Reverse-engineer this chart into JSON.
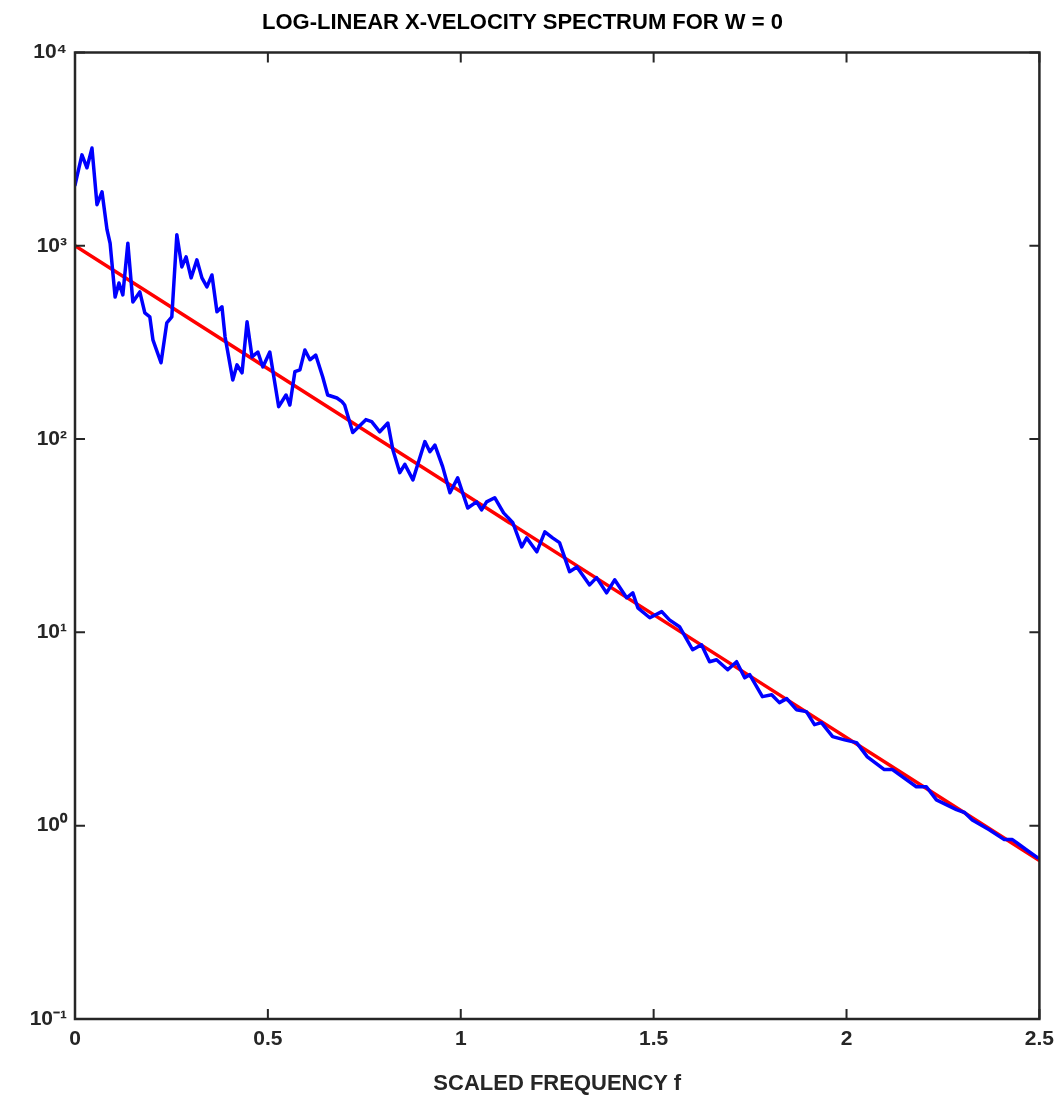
{
  "chart_data": {
    "type": "line",
    "title": "LOG-LINEAR X-VELOCITY SPECTRUM FOR W = 0",
    "xlabel": "SCALED FREQUENCY f",
    "log": "y",
    "grid": false,
    "legend": false,
    "marker": "none",
    "line_style": "solid",
    "xlim": [
      0,
      2.5
    ],
    "xticks": [
      0,
      0.5,
      1,
      1.5,
      2,
      2.5
    ],
    "ylim": [
      0.1,
      10000
    ],
    "yticks": [
      {
        "value": 0.1,
        "label": "10⁻¹"
      },
      {
        "value": 1,
        "label": "10⁰"
      },
      {
        "value": 10,
        "label": "10¹"
      },
      {
        "value": 100,
        "label": "10²"
      },
      {
        "value": 1000,
        "label": "10³"
      },
      {
        "value": 10000,
        "label": "10⁴"
      }
    ],
    "series": [
      {
        "type": "line",
        "color": "#0000ff",
        "x": [
          0,
          0.018,
          0.031,
          0.044,
          0.057,
          0.07,
          0.083,
          0.091,
          0.104,
          0.114,
          0.124,
          0.137,
          0.15,
          0.168,
          0.181,
          0.194,
          0.202,
          0.223,
          0.238,
          0.251,
          0.264,
          0.277,
          0.288,
          0.301,
          0.316,
          0.329,
          0.342,
          0.355,
          0.368,
          0.381,
          0.389,
          0.409,
          0.42,
          0.433,
          0.446,
          0.459,
          0.474,
          0.487,
          0.505,
          0.528,
          0.547,
          0.557,
          0.57,
          0.583,
          0.596,
          0.609,
          0.624,
          0.642,
          0.655,
          0.679,
          0.692,
          0.699,
          0.72,
          0.754,
          0.769,
          0.79,
          0.811,
          0.824,
          0.842,
          0.855,
          0.876,
          0.907,
          0.92,
          0.933,
          0.953,
          0.972,
          0.992,
          1.018,
          1.041,
          1.054,
          1.067,
          1.088,
          1.111,
          1.135,
          1.158,
          1.171,
          1.197,
          1.218,
          1.238,
          1.256,
          1.282,
          1.301,
          1.334,
          1.352,
          1.378,
          1.399,
          1.43,
          1.446,
          1.459,
          1.49,
          1.521,
          1.541,
          1.567,
          1.601,
          1.624,
          1.645,
          1.663,
          1.692,
          1.715,
          1.736,
          1.749,
          1.782,
          1.806,
          1.826,
          1.845,
          1.87,
          1.896,
          1.917,
          1.935,
          1.964,
          1.995,
          2.026,
          2.054,
          2.098,
          2.119,
          2.181,
          2.207,
          2.233,
          2.285,
          2.306,
          2.326,
          2.37,
          2.409,
          2.43,
          2.466,
          2.495
        ],
        "values": [
          2060,
          2950,
          2530,
          3200,
          1630,
          1900,
          1210,
          1030,
          543,
          642,
          557,
          1030,
          512,
          577,
          449,
          428,
          326,
          248,
          399,
          428,
          1140,
          777,
          875,
          682,
          845,
          682,
          612,
          706,
          455,
          483,
          338,
          202,
          242,
          220,
          404,
          266,
          282,
          236,
          282,
          147,
          169,
          150,
          223,
          228,
          289,
          257,
          272,
          210,
          169,
          163,
          156,
          150,
          108,
          126,
          123,
          109,
          121,
          88,
          67,
          74,
          61.5,
          97,
          86,
          93,
          72,
          52.7,
          63,
          44,
          47.3,
          43,
          47.3,
          49.7,
          41.5,
          36.9,
          27.7,
          30.8,
          26.1,
          33.1,
          30.8,
          29.1,
          20.6,
          21.8,
          17.6,
          19.2,
          16,
          18.7,
          15.1,
          16,
          13.4,
          11.9,
          12.8,
          11.6,
          10.7,
          8.13,
          8.63,
          7.05,
          7.22,
          6.41,
          7.05,
          5.82,
          6.04,
          4.65,
          4.76,
          4.33,
          4.54,
          3.98,
          3.89,
          3.33,
          3.41,
          2.89,
          2.78,
          2.69,
          2.27,
          1.95,
          1.95,
          1.59,
          1.59,
          1.36,
          1.21,
          1.17,
          1.07,
          0.953,
          0.847,
          0.847,
          0.751,
          0.683
        ]
      },
      {
        "type": "line",
        "color": "#ff0000",
        "x": [
          0,
          2.5
        ],
        "values": [
          1000,
          0.66
        ]
      }
    ]
  }
}
